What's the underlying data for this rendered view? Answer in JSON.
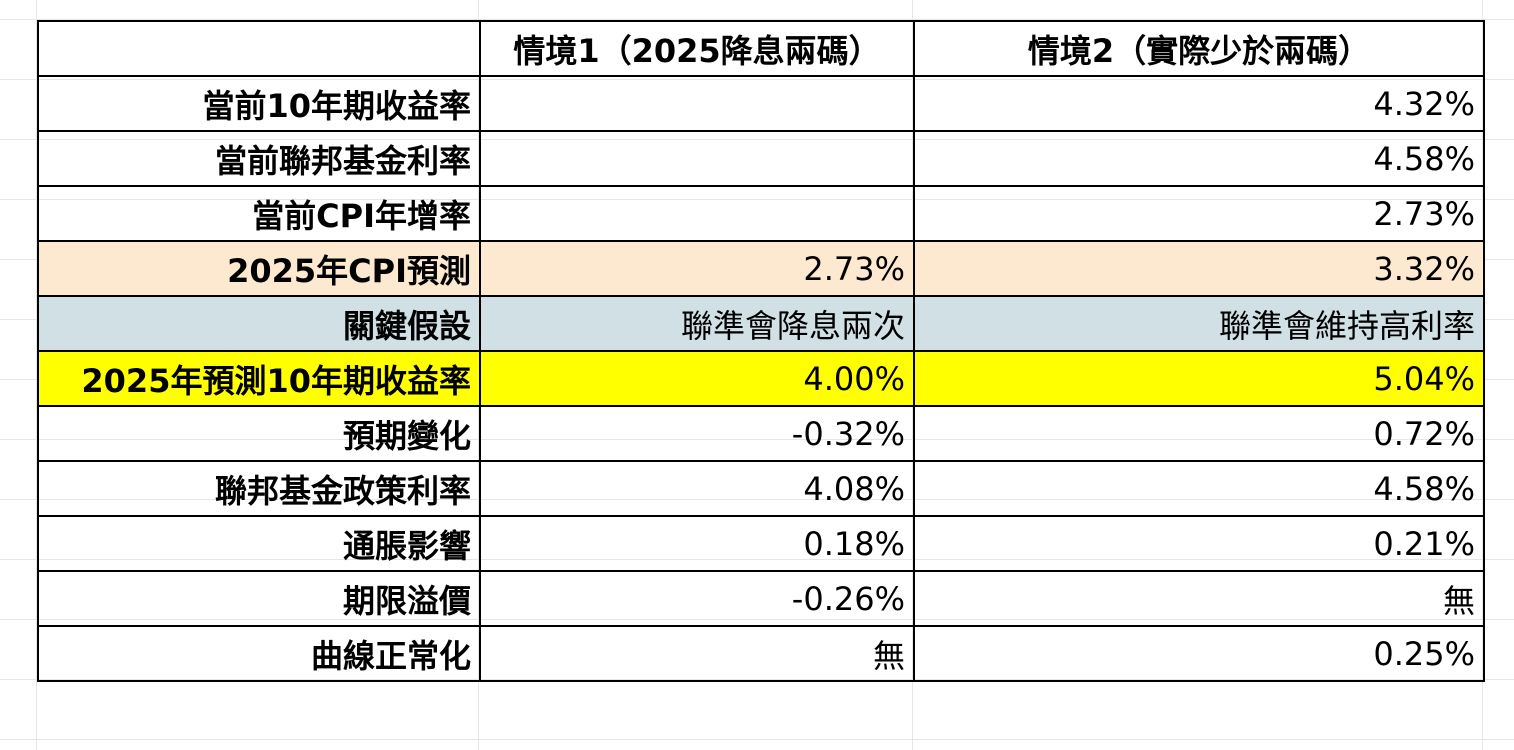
{
  "table": {
    "header": {
      "corner": "",
      "scenario1": "情境1（2025降息兩碼）",
      "scenario2": "情境2（實際少於兩碼）"
    },
    "rows": [
      {
        "label": "當前10年期收益率",
        "s1": "",
        "s2": "4.32%"
      },
      {
        "label": "當前聯邦基金利率",
        "s1": "",
        "s2": "4.58%"
      },
      {
        "label": "當前CPI年增率",
        "s1": "",
        "s2": "2.73%"
      },
      {
        "label": "2025年CPI預測",
        "s1": "2.73%",
        "s2": "3.32%"
      },
      {
        "label": "關鍵假設",
        "s1": "聯準會降息兩次",
        "s2": "聯準會維持高利率"
      },
      {
        "label": "2025年預測10年期收益率",
        "s1": "4.00%",
        "s2": "5.04%"
      },
      {
        "label": "預期變化",
        "s1": "-0.32%",
        "s2": "0.72%"
      },
      {
        "label": "聯邦基金政策利率",
        "s1": "4.08%",
        "s2": "4.58%"
      },
      {
        "label": "通脹影響",
        "s1": "0.18%",
        "s2": "0.21%"
      },
      {
        "label": "期限溢價",
        "s1": "-0.26%",
        "s2": "無"
      },
      {
        "label": "曲線正常化",
        "s1": "無",
        "s2": "0.25%"
      }
    ]
  },
  "colors": {
    "cpi_row": "#fde9cf",
    "assumption_row": "#d1e0e4",
    "forecast_row": "#ffff00"
  }
}
